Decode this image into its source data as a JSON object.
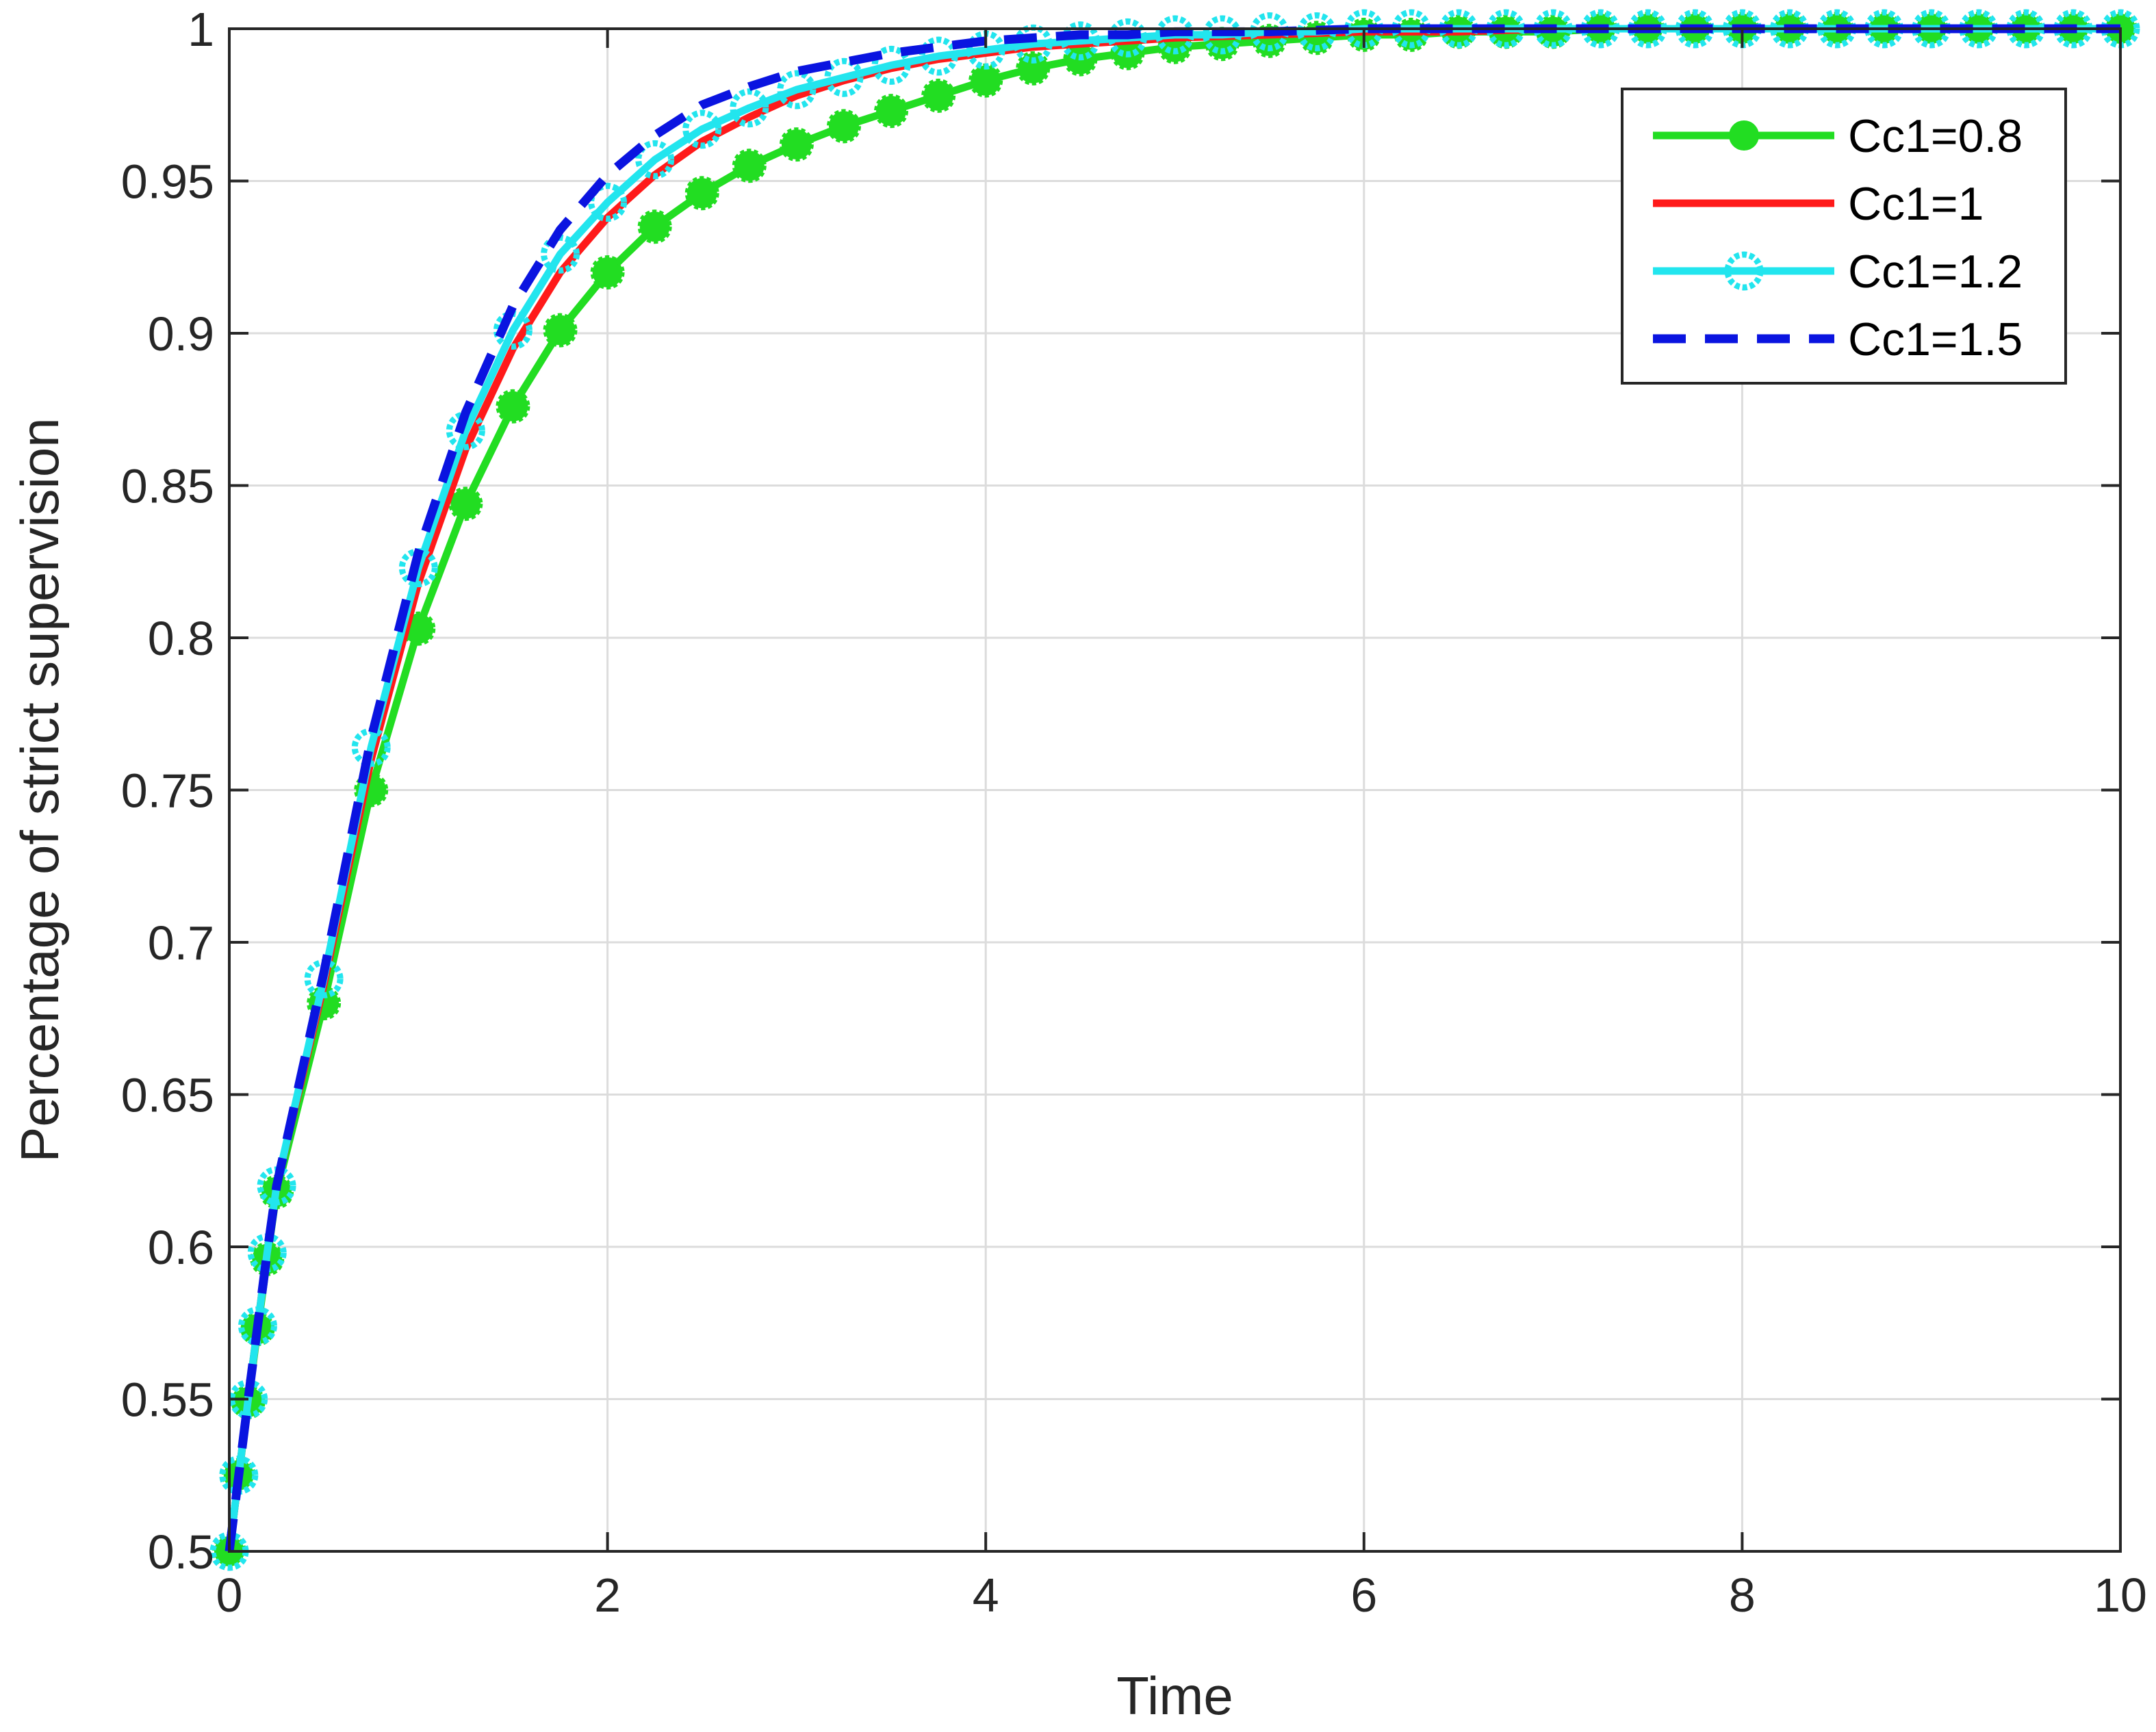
{
  "chart_data": {
    "type": "line",
    "title": "",
    "xlabel": "Time",
    "ylabel": "Percentage of strict supervision",
    "xlim": [
      0,
      10
    ],
    "ylim": [
      0.5,
      1
    ],
    "xticks": [
      "0",
      "2",
      "4",
      "6",
      "8",
      "10"
    ],
    "yticks": [
      "0.5",
      "0.55",
      "0.6",
      "0.65",
      "0.7",
      "0.75",
      "0.8",
      "0.85",
      "0.9",
      "0.95",
      "1"
    ],
    "grid": true,
    "legend_position": "top-right",
    "series": [
      {
        "name": "Cc1=0.8",
        "color": "#22dd22",
        "style": "solid",
        "marker": "filled-circle",
        "x": [
          0,
          0.05,
          0.1,
          0.15,
          0.2,
          0.25,
          0.5,
          0.75,
          1,
          1.25,
          1.5,
          1.75,
          2,
          2.25,
          2.5,
          2.75,
          3,
          3.25,
          3.5,
          3.75,
          4,
          4.25,
          4.5,
          4.75,
          5,
          5.25,
          5.5,
          5.75,
          6,
          6.25,
          6.5,
          6.75,
          7,
          7.25,
          7.5,
          7.75,
          8,
          8.25,
          8.5,
          8.75,
          9,
          9.25,
          9.5,
          9.75,
          10
        ],
        "y": [
          0.5,
          0.525,
          0.549,
          0.573,
          0.596,
          0.618,
          0.68,
          0.75,
          0.803,
          0.844,
          0.876,
          0.901,
          0.92,
          0.935,
          0.946,
          0.955,
          0.962,
          0.968,
          0.973,
          0.978,
          0.983,
          0.987,
          0.99,
          0.992,
          0.994,
          0.995,
          0.996,
          0.997,
          0.998,
          0.998,
          0.999,
          0.999,
          0.999,
          1.0,
          1.0,
          1.0,
          1.0,
          1.0,
          1.0,
          1.0,
          1.0,
          1.0,
          1.0,
          1.0,
          1.0
        ]
      },
      {
        "name": "Cc1=1",
        "color": "#ff1a1a",
        "style": "solid",
        "marker": "none",
        "x": [
          0,
          0.05,
          0.1,
          0.15,
          0.2,
          0.25,
          0.5,
          0.75,
          1,
          1.25,
          1.5,
          1.75,
          2,
          2.25,
          2.5,
          2.75,
          3,
          3.25,
          3.5,
          3.75,
          4,
          4.25,
          4.5,
          4.75,
          5,
          5.5,
          6,
          6.5,
          7,
          7.5,
          8,
          8.5,
          9,
          9.5,
          10
        ],
        "y": [
          0.5,
          0.525,
          0.55,
          0.574,
          0.598,
          0.62,
          0.686,
          0.76,
          0.818,
          0.862,
          0.895,
          0.92,
          0.938,
          0.952,
          0.963,
          0.971,
          0.978,
          0.983,
          0.987,
          0.99,
          0.992,
          0.994,
          0.995,
          0.996,
          0.997,
          0.998,
          0.999,
          0.999,
          1.0,
          1.0,
          1.0,
          1.0,
          1.0,
          1.0,
          1.0
        ]
      },
      {
        "name": "Cc1=1.2",
        "color": "#22e5ee",
        "style": "solid",
        "marker": "open-circle",
        "x": [
          0,
          0.05,
          0.1,
          0.15,
          0.2,
          0.25,
          0.5,
          0.75,
          1,
          1.25,
          1.5,
          1.75,
          2,
          2.25,
          2.5,
          2.75,
          3,
          3.25,
          3.5,
          3.75,
          4,
          4.25,
          4.5,
          4.75,
          5,
          5.25,
          5.5,
          5.75,
          6,
          6.25,
          6.5,
          6.75,
          7,
          7.25,
          7.5,
          7.75,
          8,
          8.25,
          8.5,
          8.75,
          9,
          9.25,
          9.5,
          9.75,
          10
        ],
        "y": [
          0.5,
          0.525,
          0.55,
          0.574,
          0.598,
          0.62,
          0.688,
          0.764,
          0.823,
          0.868,
          0.901,
          0.926,
          0.943,
          0.957,
          0.967,
          0.974,
          0.98,
          0.984,
          0.988,
          0.991,
          0.993,
          0.995,
          0.996,
          0.997,
          0.998,
          0.998,
          0.999,
          0.999,
          1.0,
          1.0,
          1.0,
          1.0,
          1.0,
          1.0,
          1.0,
          1.0,
          1.0,
          1.0,
          1.0,
          1.0,
          1.0,
          1.0,
          1.0,
          1.0,
          1.0
        ]
      },
      {
        "name": "Cc1=1.5",
        "color": "#0a14e0",
        "style": "dashed",
        "marker": "none",
        "x": [
          0,
          0.05,
          0.1,
          0.15,
          0.2,
          0.25,
          0.5,
          0.75,
          1,
          1.25,
          1.5,
          1.75,
          2,
          2.25,
          2.5,
          2.75,
          3,
          3.25,
          3.5,
          3.75,
          4,
          4.25,
          4.5,
          4.75,
          5,
          5.5,
          6,
          6.5,
          7,
          7.5,
          8,
          8.5,
          9,
          9.5,
          10
        ],
        "y": [
          0.5,
          0.525,
          0.55,
          0.574,
          0.598,
          0.62,
          0.69,
          0.767,
          0.828,
          0.874,
          0.909,
          0.934,
          0.952,
          0.965,
          0.975,
          0.981,
          0.986,
          0.989,
          0.992,
          0.994,
          0.996,
          0.997,
          0.998,
          0.998,
          0.999,
          0.999,
          1.0,
          1.0,
          1.0,
          1.0,
          1.0,
          1.0,
          1.0,
          1.0,
          1.0
        ]
      }
    ]
  }
}
